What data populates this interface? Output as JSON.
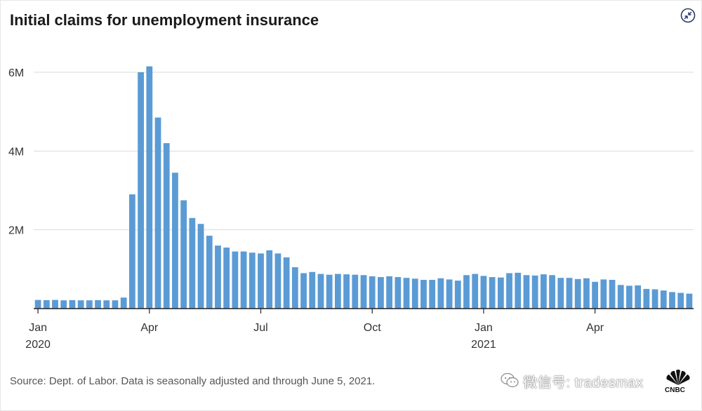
{
  "title": "Initial claims for unemployment insurance",
  "source": "Source: Dept. of Labor. Data is seasonally adjusted and through June 5, 2021.",
  "watermark": "微信号: tradesmax",
  "brand": "CNBC",
  "colors": {
    "bar": "#5b9bd5",
    "grid": "#d9d9d9",
    "axis": "#222222"
  },
  "chart_data": {
    "type": "bar",
    "title": "Initial claims for unemployment insurance",
    "xlabel": "",
    "ylabel": "",
    "ylim": [
      0,
      6300000
    ],
    "y_ticks": [
      {
        "value": 2000000,
        "label": "2M"
      },
      {
        "value": 4000000,
        "label": "4M"
      },
      {
        "value": 6000000,
        "label": "6M"
      }
    ],
    "x_ticks": [
      {
        "index": 0,
        "label": "Jan",
        "sublabel": "2020"
      },
      {
        "index": 13,
        "label": "Apr",
        "sublabel": ""
      },
      {
        "index": 26,
        "label": "Jul",
        "sublabel": ""
      },
      {
        "index": 39,
        "label": "Oct",
        "sublabel": ""
      },
      {
        "index": 52,
        "label": "Jan",
        "sublabel": "2021"
      },
      {
        "index": 65,
        "label": "Apr",
        "sublabel": ""
      }
    ],
    "grid": true,
    "values": [
      220000,
      215000,
      220000,
      210000,
      215000,
      210000,
      210000,
      215000,
      210000,
      210000,
      280000,
      2900000,
      6000000,
      6150000,
      4850000,
      4200000,
      3450000,
      2750000,
      2300000,
      2150000,
      1850000,
      1600000,
      1550000,
      1450000,
      1450000,
      1420000,
      1400000,
      1480000,
      1400000,
      1300000,
      1050000,
      900000,
      930000,
      880000,
      860000,
      880000,
      870000,
      860000,
      850000,
      820000,
      800000,
      820000,
      800000,
      780000,
      760000,
      730000,
      730000,
      770000,
      740000,
      710000,
      850000,
      880000,
      830000,
      800000,
      790000,
      900000,
      910000,
      850000,
      840000,
      870000,
      850000,
      780000,
      780000,
      750000,
      770000,
      680000,
      740000,
      730000,
      600000,
      580000,
      590000,
      500000,
      490000,
      460000,
      420000,
      400000,
      380000
    ]
  }
}
